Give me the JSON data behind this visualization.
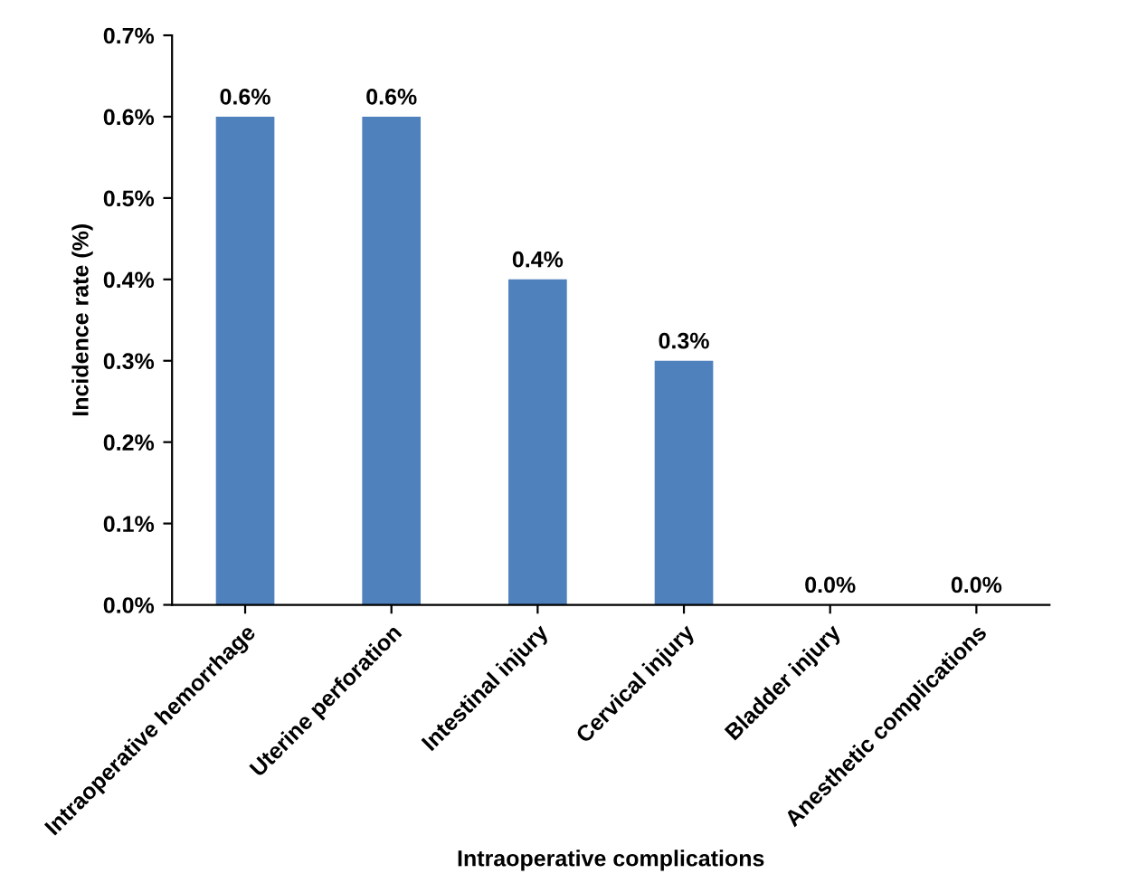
{
  "chart_data": {
    "type": "bar",
    "xlabel": "Intraoperative complications",
    "ylabel": "Incidence rate (%)",
    "categories": [
      "Intraoperative hemorrhage",
      "Uterine perforation",
      "Intestinal injury",
      "Cervical injury",
      "Bladder injury",
      "Anesthetic complications"
    ],
    "values": [
      0.6,
      0.6,
      0.4,
      0.3,
      0.0,
      0.0
    ],
    "value_labels": [
      "0.6%",
      "0.6%",
      "0.4%",
      "0.3%",
      "0.0%",
      "0.0%"
    ],
    "color": "#4f81bd",
    "ylim": [
      0,
      0.7
    ],
    "yticks": [
      {
        "value": 0,
        "label": "0.0%"
      },
      {
        "value": 0.1,
        "label": "0.1%"
      },
      {
        "value": 0.2,
        "label": "0.2%"
      },
      {
        "value": 0.3,
        "label": "0.3%"
      },
      {
        "value": 0.4,
        "label": "0.4%"
      },
      {
        "value": 0.5,
        "label": "0.5%"
      },
      {
        "value": 0.6,
        "label": "0.6%"
      },
      {
        "value": 0.7,
        "label": "0.7%"
      }
    ],
    "grid": false,
    "legend": false
  }
}
